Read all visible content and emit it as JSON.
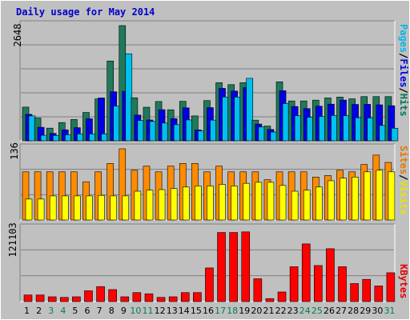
{
  "chart_data": [
    {
      "type": "bar",
      "title": "Daily usage for May 2014",
      "panel": "hits-files-pages",
      "ymax_label": "2648",
      "ylim": [
        0,
        2648
      ],
      "grid": true,
      "legend_placement": "right",
      "legend": [
        {
          "label": "Pages",
          "color": "#00b8e6"
        },
        {
          "label": "Files",
          "color": "#0000e6"
        },
        {
          "label": "Hits",
          "color": "#007850"
        }
      ],
      "categories": [
        "1",
        "2",
        "3",
        "4",
        "5",
        "6",
        "7",
        "8",
        "9",
        "10",
        "11",
        "12",
        "13",
        "14",
        "15",
        "16",
        "17",
        "18",
        "19",
        "20",
        "21",
        "22",
        "23",
        "24",
        "25",
        "26",
        "27",
        "28",
        "29",
        "30",
        "31"
      ],
      "series": [
        {
          "name": "Hits",
          "color": "#1e7a5a",
          "values": [
            775,
            524,
            291,
            420,
            490,
            652,
            962,
            1834,
            2648,
            989,
            772,
            903,
            713,
            908,
            572,
            924,
            1336,
            1291,
            1336,
            475,
            339,
            1356,
            916,
            916,
            935,
            985,
            1005,
            965,
            1016,
            1016,
            1016
          ]
        },
        {
          "name": "Files",
          "color": "#0000e6",
          "values": [
            608,
            311,
            170,
            251,
            302,
            506,
            985,
            1128,
            1136,
            592,
            479,
            715,
            510,
            758,
            249,
            763,
            1205,
            1144,
            1223,
            385,
            260,
            1151,
            789,
            740,
            796,
            842,
            936,
            836,
            838,
            827,
            806
          ]
        },
        {
          "name": "Pages",
          "color": "#00c0f0",
          "values": [
            572,
            127,
            123,
            138,
            160,
            160,
            160,
            800,
            2000,
            468,
            445,
            409,
            371,
            480,
            228,
            476,
            1006,
            1005,
            1436,
            318,
            201,
            856,
            575,
            540,
            560,
            583,
            578,
            531,
            526,
            352,
            289
          ]
        }
      ]
    },
    {
      "type": "bar",
      "panel": "visits-sites",
      "ymax_label": "136",
      "ylim": [
        0,
        136
      ],
      "grid": true,
      "legend_placement": "right",
      "legend": [
        {
          "label": "Sites",
          "color": "#e67800"
        },
        {
          "label": "Visits",
          "color": "#e6e600"
        }
      ],
      "categories": [
        "1",
        "2",
        "3",
        "4",
        "5",
        "6",
        "7",
        "8",
        "9",
        "10",
        "11",
        "12",
        "13",
        "14",
        "15",
        "16",
        "17",
        "18",
        "19",
        "20",
        "21",
        "22",
        "23",
        "24",
        "25",
        "26",
        "27",
        "28",
        "29",
        "30",
        "31"
      ],
      "series": [
        {
          "name": "Visits",
          "color": "#ff8c00",
          "values": [
            92,
            92,
            92,
            92,
            92,
            73,
            92,
            108,
            136,
            95,
            103,
            92,
            103,
            108,
            108,
            92,
            103,
            92,
            92,
            92,
            77,
            92,
            92,
            92,
            82,
            85,
            95,
            92,
            106,
            124,
            110
          ]
        },
        {
          "name": "Sites",
          "color": "#ffff00",
          "values": [
            40,
            40,
            46,
            46,
            46,
            46,
            47,
            46,
            46,
            55,
            57,
            58,
            60,
            63,
            65,
            65,
            68,
            65,
            70,
            72,
            72,
            66,
            55,
            57,
            63,
            75,
            80,
            82,
            92,
            95,
            92
          ]
        }
      ]
    },
    {
      "type": "bar",
      "panel": "kbytes",
      "ymax_label": "121103",
      "ylim": [
        0,
        121103
      ],
      "grid": true,
      "legend_placement": "right",
      "legend": [
        {
          "label": "KBytes",
          "color": "#e60000"
        }
      ],
      "categories": [
        "1",
        "2",
        "3",
        "4",
        "5",
        "6",
        "7",
        "8",
        "9",
        "10",
        "11",
        "12",
        "13",
        "14",
        "15",
        "16",
        "17",
        "18",
        "19",
        "20",
        "21",
        "22",
        "23",
        "24",
        "25",
        "26",
        "27",
        "28",
        "29",
        "30",
        "31"
      ],
      "series": [
        {
          "name": "KBytes",
          "color": "#ff0000",
          "values": [
            11000,
            11000,
            8000,
            7000,
            8000,
            18000,
            25000,
            20000,
            8000,
            15000,
            13000,
            7000,
            8000,
            15000,
            15000,
            56000,
            115000,
            115000,
            116000,
            38000,
            5000,
            16000,
            58000,
            96000,
            60000,
            88000,
            58000,
            30000,
            37000,
            26000,
            48000
          ]
        }
      ]
    }
  ],
  "axis_labels": [
    "1",
    "2",
    "3",
    "4",
    "5",
    "6",
    "7",
    "8",
    "9",
    "10",
    "11",
    "12",
    "13",
    "14",
    "15",
    "16",
    "17",
    "18",
    "19",
    "20",
    "21",
    "22",
    "23",
    "24",
    "25",
    "26",
    "27",
    "28",
    "29",
    "30",
    "31"
  ],
  "weekend_days": [
    "3",
    "4",
    "10",
    "11",
    "17",
    "18",
    "24",
    "25",
    "31"
  ],
  "colors": {
    "background": "#c0c0c0",
    "title": "#0000cc",
    "grid": "#808080",
    "weekday_label": "#000000",
    "weekend_label": "#00804a"
  }
}
